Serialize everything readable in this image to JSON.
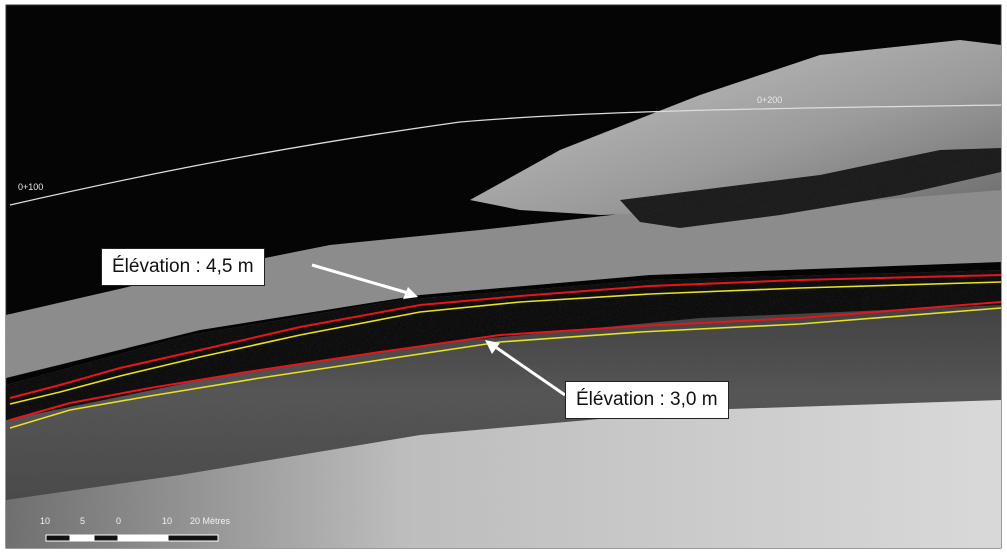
{
  "map": {
    "background_color": "#ffffff",
    "terrain_colors": {
      "dark": "#050505",
      "mid": "#7b7b7b",
      "light": "#d8d8d8"
    },
    "contour_colors": {
      "elev_4_5": "#e8141c",
      "elev_3_0": "#e8e020"
    },
    "callouts": [
      {
        "id": "upper",
        "label": "Élévation : 4,5 m"
      },
      {
        "id": "lower",
        "label": "Élévation : 3,0 m"
      }
    ],
    "station_labels": [
      "0+100",
      "0+200"
    ],
    "scale_bar": {
      "labels": [
        "10",
        "5",
        "0",
        "10",
        "20 Mètres"
      ],
      "icon": "scale-bar-icon"
    },
    "icons": [
      "callout-arrow-icon"
    ]
  }
}
